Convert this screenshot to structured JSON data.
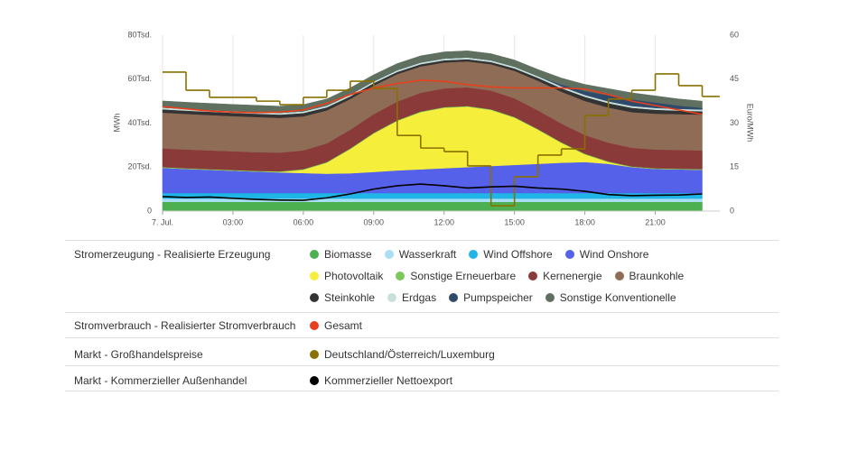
{
  "chart_data": {
    "type": "area",
    "y_label": "MWh",
    "y2_label": "Euro/MWh",
    "x": [
      0,
      1,
      2,
      3,
      4,
      5,
      6,
      7,
      8,
      9,
      10,
      11,
      12,
      13,
      14,
      15,
      16,
      17,
      18,
      19,
      20,
      21,
      22,
      23
    ],
    "xlim": [
      0,
      23.75
    ],
    "xticks": [
      {
        "value": 0,
        "label": "7. Jul."
      },
      {
        "value": 3,
        "label": "03:00"
      },
      {
        "value": 6,
        "label": "06:00"
      },
      {
        "value": 9,
        "label": "09:00"
      },
      {
        "value": 12,
        "label": "12:00"
      },
      {
        "value": 15,
        "label": "15:00"
      },
      {
        "value": 18,
        "label": "18:00"
      },
      {
        "value": 21,
        "label": "21:00"
      }
    ],
    "ylim": [
      0,
      80000
    ],
    "yticks": [
      0,
      {
        "value": 20000,
        "label": "20Tsd."
      },
      {
        "value": 40000,
        "label": "40Tsd."
      },
      {
        "value": 60000,
        "label": "60Tsd."
      },
      {
        "value": 80000,
        "label": "80Tsd."
      }
    ],
    "y2lim": [
      0,
      60
    ],
    "y2ticks": [
      0,
      15,
      30,
      45,
      60
    ],
    "grid": "x",
    "legend_groups": [
      "Stromerzeugung - Realisierte Erzeugung",
      "Stromverbrauch - Realisierter Stromverbrauch",
      "Markt - Großhandelspreise",
      "Markt - Kommerzieller Außenhandel"
    ],
    "series": [
      {
        "name": "Biomasse",
        "color": "#4caf50",
        "kind": "area",
        "group": 0,
        "values": [
          4200,
          4200,
          4200,
          4200,
          4200,
          4200,
          4200,
          4200,
          4200,
          4200,
          4200,
          4200,
          4200,
          4200,
          4200,
          4200,
          4200,
          4200,
          4200,
          4200,
          4200,
          4200,
          4200,
          4200
        ]
      },
      {
        "name": "Wasserkraft",
        "color": "#a8dff5",
        "kind": "area",
        "group": 0,
        "values": [
          1500,
          1500,
          1500,
          1500,
          1500,
          1500,
          1500,
          1500,
          1500,
          1500,
          1500,
          1500,
          1500,
          1500,
          1500,
          1500,
          1500,
          1500,
          1500,
          1500,
          1500,
          1500,
          1500,
          1500
        ]
      },
      {
        "name": "Wind Offshore",
        "color": "#1fb5e6",
        "kind": "area",
        "group": 0,
        "values": [
          2500,
          2500,
          2500,
          2500,
          2500,
          2500,
          2500,
          2500,
          2500,
          2500,
          2500,
          2500,
          2500,
          2500,
          2500,
          2500,
          2500,
          2500,
          2500,
          2500,
          2500,
          2500,
          2500,
          2500
        ]
      },
      {
        "name": "Wind Onshore",
        "color": "#5561e8",
        "kind": "area",
        "group": 0,
        "values": [
          11500,
          11000,
          10600,
          10200,
          9800,
          9400,
          9100,
          8800,
          9000,
          9600,
          10300,
          10800,
          11300,
          11800,
          12300,
          12800,
          13300,
          13800,
          14100,
          13300,
          11800,
          11000,
          10800,
          10600
        ]
      },
      {
        "name": "Photovoltaik",
        "color": "#f5ef3c",
        "kind": "area",
        "group": 0,
        "values": [
          0,
          0,
          0,
          0,
          0,
          200,
          1500,
          5000,
          11000,
          17500,
          22500,
          26000,
          27500,
          27500,
          25500,
          21500,
          15500,
          9000,
          3500,
          800,
          0,
          0,
          0,
          0
        ]
      },
      {
        "name": "Sonstige Erneuerbare",
        "color": "#7cc85a",
        "kind": "area",
        "group": 0,
        "values": [
          300,
          300,
          300,
          300,
          300,
          300,
          300,
          300,
          300,
          300,
          300,
          300,
          300,
          300,
          300,
          300,
          300,
          300,
          300,
          300,
          300,
          300,
          300,
          300
        ]
      },
      {
        "name": "Kernenergie",
        "color": "#8b3a3a",
        "kind": "area",
        "group": 0,
        "values": [
          8500,
          8500,
          8500,
          8500,
          8500,
          8500,
          8500,
          8500,
          8500,
          8500,
          8500,
          8500,
          8500,
          8500,
          8500,
          8500,
          8500,
          8500,
          8500,
          8500,
          8500,
          8500,
          8500,
          8500
        ]
      },
      {
        "name": "Braunkohle",
        "color": "#8f6c55",
        "kind": "area",
        "group": 0,
        "values": [
          16300,
          16200,
          16100,
          16000,
          16000,
          15800,
          15500,
          15000,
          14000,
          13000,
          12500,
          12000,
          11800,
          11800,
          12000,
          12500,
          13500,
          14500,
          15500,
          16000,
          16200,
          16300,
          16300,
          16300
        ]
      },
      {
        "name": "Steinkohle",
        "color": "#333333",
        "kind": "area",
        "group": 0,
        "values": [
          1500,
          1500,
          1500,
          1500,
          1500,
          1500,
          1500,
          1400,
          1200,
          1100,
          1000,
          1000,
          1000,
          1000,
          1000,
          1100,
          1300,
          1600,
          1900,
          2000,
          2000,
          1800,
          1600,
          1500
        ]
      },
      {
        "name": "Erdgas",
        "color": "#c8e0dc",
        "kind": "area",
        "group": 0,
        "values": [
          800,
          800,
          800,
          800,
          800,
          800,
          800,
          800,
          800,
          800,
          800,
          800,
          800,
          800,
          800,
          800,
          800,
          800,
          800,
          800,
          800,
          800,
          800,
          800
        ]
      },
      {
        "name": "Pumpspeicher",
        "color": "#2f4a6b",
        "kind": "area",
        "group": 0,
        "values": [
          0,
          0,
          0,
          0,
          0,
          0,
          0,
          0,
          0,
          0,
          0,
          0,
          0,
          0,
          0,
          0,
          0,
          800,
          1800,
          2800,
          3000,
          2500,
          1500,
          800
        ]
      },
      {
        "name": "Sonstige Konventionelle",
        "color": "#5f7060",
        "kind": "area",
        "group": 0,
        "values": [
          3000,
          3000,
          3000,
          3000,
          3000,
          3000,
          3000,
          3000,
          3000,
          3000,
          3000,
          3000,
          3000,
          3000,
          3000,
          3000,
          3000,
          3000,
          3000,
          3000,
          3000,
          3000,
          3000,
          3000
        ]
      },
      {
        "name": "Gesamt",
        "color": "#e8401c",
        "kind": "line",
        "group": 1,
        "values": [
          47500,
          46500,
          45500,
          45000,
          44800,
          45000,
          46000,
          49000,
          53000,
          56000,
          58000,
          59500,
          59000,
          57500,
          56500,
          56000,
          56000,
          56000,
          55500,
          53000,
          50000,
          48000,
          46000,
          44000
        ]
      },
      {
        "name": "Deutschland/Österreich/Luxemburg",
        "color": "#8a7000",
        "kind": "step",
        "axis": "y2",
        "group": 2,
        "values": [
          47.4,
          41.2,
          38.8,
          38.8,
          37.5,
          36.3,
          38.8,
          41.2,
          44.3,
          41.8,
          25.8,
          21.5,
          20.3,
          15.4,
          1.8,
          11.7,
          19.1,
          21.2,
          32.6,
          38.2,
          41.2,
          46.8,
          42.8,
          39.1
        ]
      },
      {
        "name": "Kommerzieller Nettoexport",
        "color": "#000000",
        "kind": "line",
        "group": 3,
        "values": [
          6600,
          6200,
          6400,
          5800,
          5300,
          5000,
          4900,
          6000,
          7800,
          10000,
          11500,
          12300,
          11500,
          10500,
          11000,
          11300,
          10500,
          10000,
          9000,
          7500,
          7000,
          7200,
          7300,
          7800
        ]
      }
    ]
  }
}
